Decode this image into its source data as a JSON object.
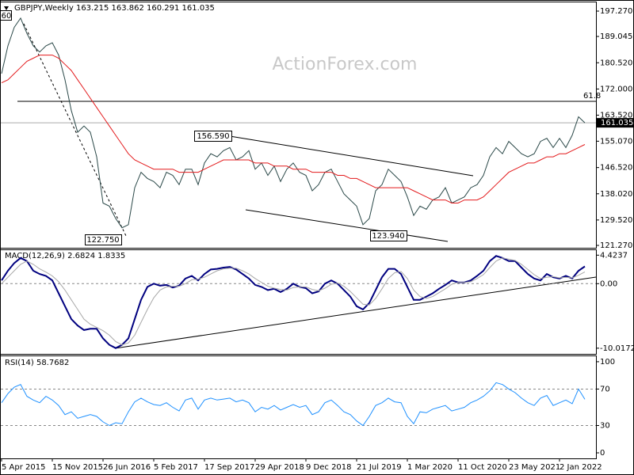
{
  "watermark": "ActionForex.com",
  "chart_data": [
    {
      "type": "line",
      "title": "GBPJPY,Weekly  163.215 163.862 160.291 161.035",
      "series": [
        {
          "name": "GBPJPY",
          "color": "#2a4848",
          "values": [
            177,
            186,
            192,
            195,
            190,
            186,
            184,
            186,
            187,
            183,
            175,
            165,
            158,
            160,
            158,
            150,
            135,
            134,
            130,
            127,
            128,
            140,
            145,
            143,
            142,
            140,
            145,
            144,
            141,
            146,
            146,
            141,
            148,
            151,
            150,
            152,
            153,
            149,
            150,
            152,
            146,
            148,
            144,
            147,
            142,
            146,
            148,
            145,
            144,
            139,
            141,
            145,
            146,
            142,
            138,
            136,
            134,
            128,
            130,
            139,
            141,
            146,
            144,
            142,
            137,
            131,
            134,
            133,
            136,
            137,
            140,
            135,
            136,
            137,
            140,
            141,
            144,
            150,
            153,
            151,
            155,
            153,
            151,
            150,
            151,
            155,
            156,
            153,
            156,
            153,
            157,
            163,
            161.035
          ]
        },
        {
          "name": "MA",
          "color": "#e31a1c",
          "values": [
            174,
            175,
            177,
            179,
            181,
            182,
            183,
            183,
            183,
            182,
            180,
            178,
            175,
            172,
            169,
            166,
            163,
            160,
            157,
            154,
            151,
            149,
            148,
            147,
            146,
            146,
            146,
            146,
            145,
            145,
            145,
            145,
            146,
            147,
            148,
            149,
            149,
            149,
            149,
            149,
            148,
            148,
            148,
            147,
            147,
            147,
            146,
            146,
            146,
            145,
            145,
            145,
            145,
            144,
            144,
            143,
            143,
            142,
            141,
            140,
            140,
            140,
            140,
            140,
            140,
            139,
            138,
            137,
            136,
            136,
            136,
            135,
            135,
            136,
            136,
            136,
            137,
            139,
            141,
            143,
            145,
            146,
            147,
            148,
            148,
            149,
            150,
            150,
            151,
            151,
            152,
            153,
            154
          ]
        }
      ],
      "ylim": [
        120.5,
        200.1
      ],
      "yticks": [
        {
          "value": 197.27,
          "label": "197.270"
        },
        189.045,
        {
          "value": 180.52,
          "label": "180.520"
        },
        {
          "value": 172,
          "label": "172.000"
        },
        {
          "value": 163.52,
          "label": "163.520"
        },
        {
          "value": 155.07,
          "label": "155.070"
        },
        {
          "value": 146.52,
          "label": "146.520"
        },
        {
          "value": 138.02,
          "label": "138.020"
        },
        {
          "value": 129.52,
          "label": "129.520"
        },
        {
          "value": 121.27,
          "label": "121.270"
        }
      ],
      "grid": false,
      "hline": {
        "value": 168,
        "label": "61.8"
      },
      "price_label": "161.035",
      "annotations": [
        "156.590",
        "122.750",
        "123.940",
        "60"
      ]
    },
    {
      "type": "line",
      "title": "MACD(12,26,9) 2.6824 1.8335",
      "series": [
        {
          "name": "MACD",
          "color": "#00007f",
          "values": [
            0.5,
            2,
            3.2,
            4,
            3.5,
            2,
            1.5,
            1.2,
            0.5,
            -1.5,
            -3.5,
            -5.5,
            -6.5,
            -7.2,
            -7,
            -7,
            -8.5,
            -9.5,
            -10,
            -9.5,
            -8.5,
            -5.5,
            -2.5,
            -0.5,
            0,
            -0.3,
            -0.2,
            -0.6,
            -0.3,
            0.8,
            1.2,
            0.5,
            1.5,
            2.2,
            2.3,
            2.5,
            2.6,
            2.2,
            1.5,
            0.8,
            -0.2,
            -0.5,
            -1,
            -0.8,
            -1.3,
            -0.8,
            0,
            -0.5,
            -0.7,
            -1.5,
            -1.2,
            0,
            0.5,
            0,
            -1,
            -2,
            -3.5,
            -4,
            -3,
            -1,
            1,
            2.3,
            2.3,
            1.5,
            -0.5,
            -2.5,
            -2.5,
            -2,
            -1.5,
            -0.8,
            -0.2,
            0.5,
            0.2,
            0.2,
            0.5,
            1.2,
            2,
            3.5,
            4.3,
            4,
            3.5,
            3.5,
            2.5,
            1.5,
            0.8,
            0.5,
            1.5,
            1,
            0.8,
            1.2,
            0.8,
            2,
            2.6824
          ]
        },
        {
          "name": "Signal",
          "color": "#a8a8a8",
          "values": [
            0,
            1,
            2,
            3,
            3.5,
            3,
            2.3,
            1.8,
            1.2,
            0.3,
            -1,
            -2.5,
            -4,
            -5.5,
            -6.3,
            -6.8,
            -7.3,
            -8,
            -9,
            -9.5,
            -9.2,
            -8,
            -6,
            -4,
            -2.2,
            -1,
            -0.5,
            -0.4,
            -0.4,
            0,
            0.6,
            0.7,
            1,
            1.5,
            2,
            2.3,
            2.4,
            2.4,
            2.0,
            1.5,
            0.8,
            0.2,
            -0.4,
            -0.7,
            -0.9,
            -1,
            -0.6,
            -0.5,
            -0.5,
            -0.9,
            -1.1,
            -0.7,
            -0.1,
            0.1,
            -0.4,
            -1.2,
            -2.2,
            -3.2,
            -3.3,
            -2.3,
            -0.8,
            0.8,
            1.7,
            1.9,
            0.8,
            -1,
            -2,
            -2.3,
            -2,
            -1.4,
            -0.8,
            -0.1,
            0.2,
            0.2,
            0.3,
            0.8,
            1.4,
            2.5,
            3.5,
            4,
            3.8,
            3.6,
            3,
            2.2,
            1.4,
            0.8,
            1,
            1.1,
            0.9,
            1,
            0.9,
            1.3,
            1.8335
          ]
        }
      ],
      "ylim": [
        -10.9,
        5.2
      ],
      "yticks": [
        4.4237,
        {
          "value": 0,
          "label": "0.00"
        },
        -10.0172
      ],
      "grid": "dashed"
    },
    {
      "type": "line",
      "title": "RSI(14) 58.7682",
      "series": [
        {
          "name": "RSI",
          "color": "#1e90ff",
          "values": [
            55,
            65,
            72,
            75,
            62,
            58,
            55,
            62,
            58,
            52,
            42,
            45,
            38,
            40,
            42,
            40,
            34,
            30,
            33,
            32,
            45,
            56,
            60,
            56,
            53,
            52,
            55,
            50,
            46,
            58,
            60,
            48,
            58,
            60,
            58,
            59,
            60,
            56,
            58,
            55,
            45,
            50,
            48,
            52,
            47,
            50,
            53,
            50,
            52,
            42,
            45,
            55,
            58,
            52,
            45,
            42,
            35,
            30,
            40,
            52,
            55,
            60,
            56,
            55,
            40,
            32,
            45,
            44,
            48,
            50,
            52,
            46,
            48,
            50,
            55,
            58,
            62,
            68,
            77,
            75,
            70,
            66,
            60,
            55,
            52,
            60,
            63,
            52,
            55,
            58,
            54,
            70,
            58.7682
          ]
        }
      ],
      "ylim": [
        -5.2,
        106
      ],
      "yticks": [
        100,
        70,
        30,
        0
      ],
      "grid": "dashed",
      "categories": [
        "5 Apr 2015",
        null,
        null,
        null,
        null,
        null,
        null,
        null,
        "15 Nov 2015",
        null,
        null,
        null,
        null,
        null,
        null,
        null,
        "26 Jun 2016",
        null,
        null,
        null,
        null,
        null,
        null,
        null,
        "5 Feb 2017",
        null,
        null,
        null,
        null,
        null,
        null,
        null,
        "17 Sep 2017",
        null,
        null,
        null,
        null,
        null,
        null,
        null,
        "29 Apr 2018",
        null,
        null,
        null,
        null,
        null,
        null,
        null,
        "9 Dec 2018",
        null,
        null,
        null,
        null,
        null,
        null,
        null,
        "21 Jul 2019",
        null,
        null,
        null,
        null,
        null,
        null,
        null,
        "1 Mar 2020",
        null,
        null,
        null,
        null,
        null,
        null,
        null,
        "11 Oct 2020",
        null,
        null,
        null,
        null,
        null,
        null,
        null,
        "23 May 2021",
        null,
        null,
        null,
        null,
        null,
        null,
        null,
        "2 Jan 2022",
        null,
        null,
        null,
        null
      ]
    }
  ]
}
